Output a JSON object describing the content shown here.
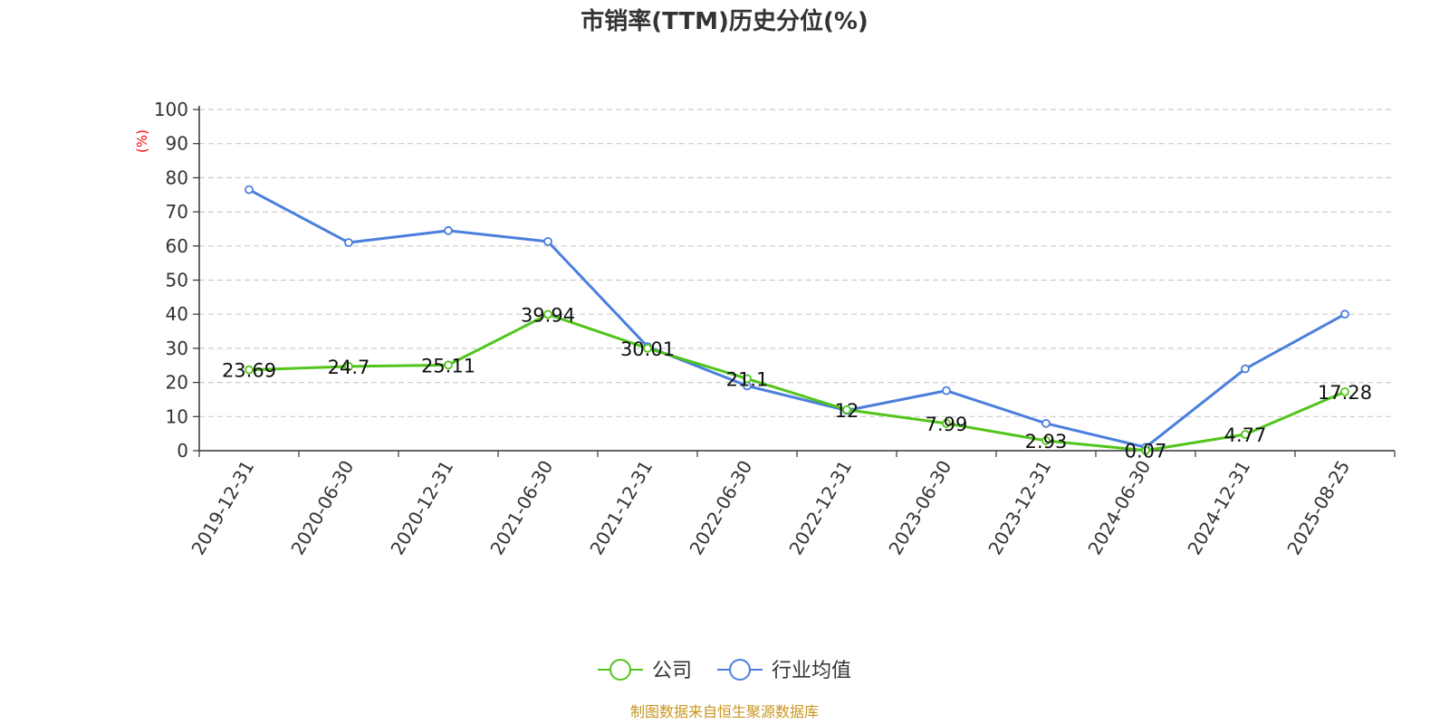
{
  "chart_data": {
    "type": "line",
    "title": "市销率(TTM)历史分位(%)",
    "ylabel": "(%)",
    "xlabel": "",
    "ylim": [
      0,
      100
    ],
    "yticks": [
      0,
      10,
      20,
      30,
      40,
      50,
      60,
      70,
      80,
      90,
      100
    ],
    "grid": true,
    "categories": [
      "2019-12-31",
      "2020-06-30",
      "2020-12-31",
      "2021-06-30",
      "2021-12-31",
      "2022-06-30",
      "2022-12-31",
      "2023-06-30",
      "2023-12-31",
      "2024-06-30",
      "2024-12-31",
      "2025-08-25"
    ],
    "series": [
      {
        "name": "公司",
        "color": "#52c41a",
        "values": [
          23.69,
          24.7,
          25.11,
          39.94,
          30.01,
          21.1,
          12,
          7.99,
          2.93,
          0.07,
          4.77,
          17.28
        ],
        "labels": [
          "23.69",
          "24.7",
          "25.11",
          "39.94",
          "30.01",
          "21.1",
          "12",
          "7.99",
          "2.93",
          "0.07",
          "4.77",
          "17.28"
        ]
      },
      {
        "name": "行业均值",
        "color": "#4a7fdc",
        "values": [
          76.5,
          61,
          64.5,
          61.3,
          30.5,
          19,
          11.8,
          17.6,
          8,
          1,
          24,
          40
        ]
      }
    ],
    "legend_position": "bottom-center",
    "source": "制图数据来自恒生聚源数据库",
    "source_color": "#c8961e",
    "ylabel_color": "#ff0000"
  }
}
